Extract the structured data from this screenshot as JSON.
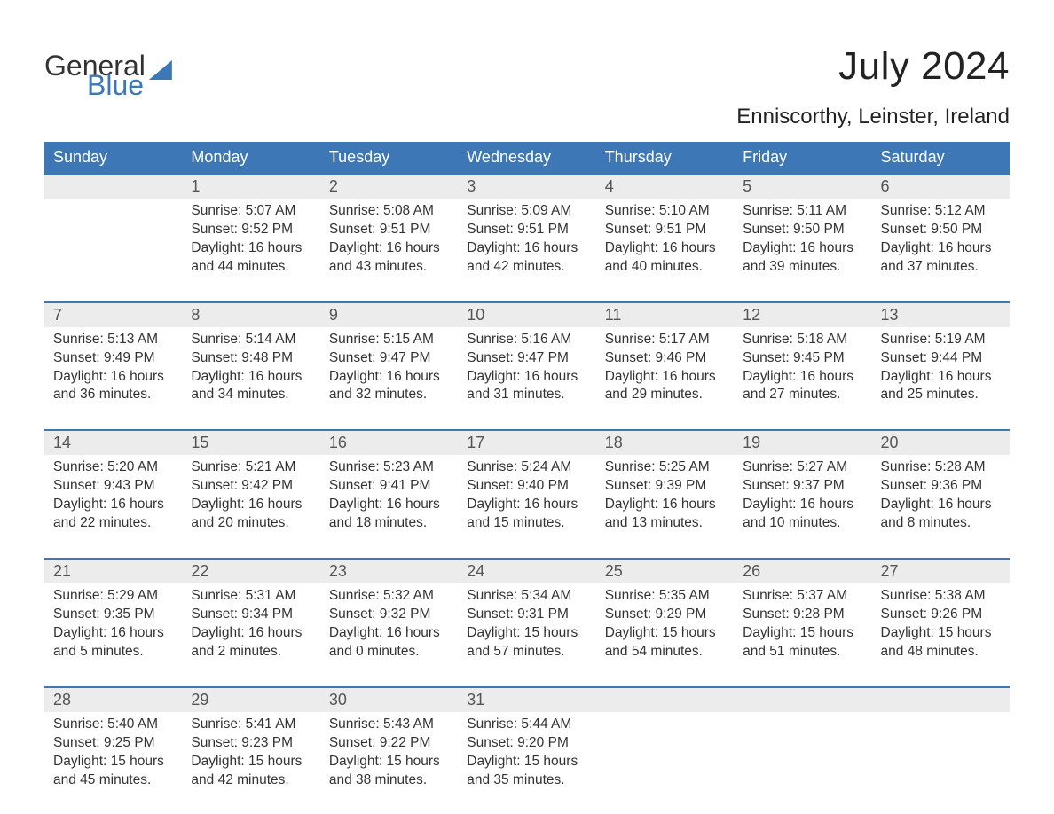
{
  "logo": {
    "word1": "General",
    "word2": "Blue"
  },
  "title": "July 2024",
  "location": "Enniscorthy, Leinster, Ireland",
  "day_headers": [
    "Sunday",
    "Monday",
    "Tuesday",
    "Wednesday",
    "Thursday",
    "Friday",
    "Saturday"
  ],
  "colors": {
    "header_bg": "#3d77b6",
    "header_text": "#ffffff",
    "daynum_bg": "#ececec",
    "row_border": "#3d77b6",
    "body_text": "#333333",
    "logo_blue": "#3d77b6"
  },
  "weeks": [
    [
      null,
      {
        "n": "1",
        "sunrise": "Sunrise: 5:07 AM",
        "sunset": "Sunset: 9:52 PM",
        "dl1": "Daylight: 16 hours",
        "dl2": "and 44 minutes."
      },
      {
        "n": "2",
        "sunrise": "Sunrise: 5:08 AM",
        "sunset": "Sunset: 9:51 PM",
        "dl1": "Daylight: 16 hours",
        "dl2": "and 43 minutes."
      },
      {
        "n": "3",
        "sunrise": "Sunrise: 5:09 AM",
        "sunset": "Sunset: 9:51 PM",
        "dl1": "Daylight: 16 hours",
        "dl2": "and 42 minutes."
      },
      {
        "n": "4",
        "sunrise": "Sunrise: 5:10 AM",
        "sunset": "Sunset: 9:51 PM",
        "dl1": "Daylight: 16 hours",
        "dl2": "and 40 minutes."
      },
      {
        "n": "5",
        "sunrise": "Sunrise: 5:11 AM",
        "sunset": "Sunset: 9:50 PM",
        "dl1": "Daylight: 16 hours",
        "dl2": "and 39 minutes."
      },
      {
        "n": "6",
        "sunrise": "Sunrise: 5:12 AM",
        "sunset": "Sunset: 9:50 PM",
        "dl1": "Daylight: 16 hours",
        "dl2": "and 37 minutes."
      }
    ],
    [
      {
        "n": "7",
        "sunrise": "Sunrise: 5:13 AM",
        "sunset": "Sunset: 9:49 PM",
        "dl1": "Daylight: 16 hours",
        "dl2": "and 36 minutes."
      },
      {
        "n": "8",
        "sunrise": "Sunrise: 5:14 AM",
        "sunset": "Sunset: 9:48 PM",
        "dl1": "Daylight: 16 hours",
        "dl2": "and 34 minutes."
      },
      {
        "n": "9",
        "sunrise": "Sunrise: 5:15 AM",
        "sunset": "Sunset: 9:47 PM",
        "dl1": "Daylight: 16 hours",
        "dl2": "and 32 minutes."
      },
      {
        "n": "10",
        "sunrise": "Sunrise: 5:16 AM",
        "sunset": "Sunset: 9:47 PM",
        "dl1": "Daylight: 16 hours",
        "dl2": "and 31 minutes."
      },
      {
        "n": "11",
        "sunrise": "Sunrise: 5:17 AM",
        "sunset": "Sunset: 9:46 PM",
        "dl1": "Daylight: 16 hours",
        "dl2": "and 29 minutes."
      },
      {
        "n": "12",
        "sunrise": "Sunrise: 5:18 AM",
        "sunset": "Sunset: 9:45 PM",
        "dl1": "Daylight: 16 hours",
        "dl2": "and 27 minutes."
      },
      {
        "n": "13",
        "sunrise": "Sunrise: 5:19 AM",
        "sunset": "Sunset: 9:44 PM",
        "dl1": "Daylight: 16 hours",
        "dl2": "and 25 minutes."
      }
    ],
    [
      {
        "n": "14",
        "sunrise": "Sunrise: 5:20 AM",
        "sunset": "Sunset: 9:43 PM",
        "dl1": "Daylight: 16 hours",
        "dl2": "and 22 minutes."
      },
      {
        "n": "15",
        "sunrise": "Sunrise: 5:21 AM",
        "sunset": "Sunset: 9:42 PM",
        "dl1": "Daylight: 16 hours",
        "dl2": "and 20 minutes."
      },
      {
        "n": "16",
        "sunrise": "Sunrise: 5:23 AM",
        "sunset": "Sunset: 9:41 PM",
        "dl1": "Daylight: 16 hours",
        "dl2": "and 18 minutes."
      },
      {
        "n": "17",
        "sunrise": "Sunrise: 5:24 AM",
        "sunset": "Sunset: 9:40 PM",
        "dl1": "Daylight: 16 hours",
        "dl2": "and 15 minutes."
      },
      {
        "n": "18",
        "sunrise": "Sunrise: 5:25 AM",
        "sunset": "Sunset: 9:39 PM",
        "dl1": "Daylight: 16 hours",
        "dl2": "and 13 minutes."
      },
      {
        "n": "19",
        "sunrise": "Sunrise: 5:27 AM",
        "sunset": "Sunset: 9:37 PM",
        "dl1": "Daylight: 16 hours",
        "dl2": "and 10 minutes."
      },
      {
        "n": "20",
        "sunrise": "Sunrise: 5:28 AM",
        "sunset": "Sunset: 9:36 PM",
        "dl1": "Daylight: 16 hours",
        "dl2": "and 8 minutes."
      }
    ],
    [
      {
        "n": "21",
        "sunrise": "Sunrise: 5:29 AM",
        "sunset": "Sunset: 9:35 PM",
        "dl1": "Daylight: 16 hours",
        "dl2": "and 5 minutes."
      },
      {
        "n": "22",
        "sunrise": "Sunrise: 5:31 AM",
        "sunset": "Sunset: 9:34 PM",
        "dl1": "Daylight: 16 hours",
        "dl2": "and 2 minutes."
      },
      {
        "n": "23",
        "sunrise": "Sunrise: 5:32 AM",
        "sunset": "Sunset: 9:32 PM",
        "dl1": "Daylight: 16 hours",
        "dl2": "and 0 minutes."
      },
      {
        "n": "24",
        "sunrise": "Sunrise: 5:34 AM",
        "sunset": "Sunset: 9:31 PM",
        "dl1": "Daylight: 15 hours",
        "dl2": "and 57 minutes."
      },
      {
        "n": "25",
        "sunrise": "Sunrise: 5:35 AM",
        "sunset": "Sunset: 9:29 PM",
        "dl1": "Daylight: 15 hours",
        "dl2": "and 54 minutes."
      },
      {
        "n": "26",
        "sunrise": "Sunrise: 5:37 AM",
        "sunset": "Sunset: 9:28 PM",
        "dl1": "Daylight: 15 hours",
        "dl2": "and 51 minutes."
      },
      {
        "n": "27",
        "sunrise": "Sunrise: 5:38 AM",
        "sunset": "Sunset: 9:26 PM",
        "dl1": "Daylight: 15 hours",
        "dl2": "and 48 minutes."
      }
    ],
    [
      {
        "n": "28",
        "sunrise": "Sunrise: 5:40 AM",
        "sunset": "Sunset: 9:25 PM",
        "dl1": "Daylight: 15 hours",
        "dl2": "and 45 minutes."
      },
      {
        "n": "29",
        "sunrise": "Sunrise: 5:41 AM",
        "sunset": "Sunset: 9:23 PM",
        "dl1": "Daylight: 15 hours",
        "dl2": "and 42 minutes."
      },
      {
        "n": "30",
        "sunrise": "Sunrise: 5:43 AM",
        "sunset": "Sunset: 9:22 PM",
        "dl1": "Daylight: 15 hours",
        "dl2": "and 38 minutes."
      },
      {
        "n": "31",
        "sunrise": "Sunrise: 5:44 AM",
        "sunset": "Sunset: 9:20 PM",
        "dl1": "Daylight: 15 hours",
        "dl2": "and 35 minutes."
      },
      null,
      null,
      null
    ]
  ]
}
